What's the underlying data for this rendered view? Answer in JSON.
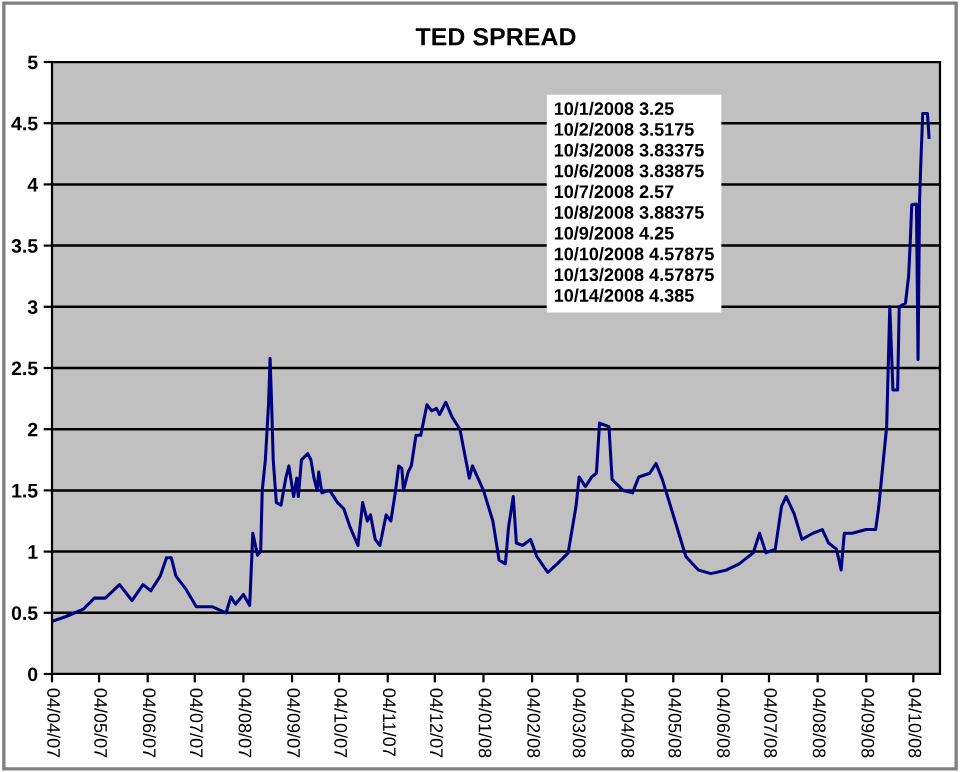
{
  "chart_data": {
    "type": "line",
    "title": "TED SPREAD",
    "x": [
      "2007-04-04",
      "2007-04-13",
      "2007-04-24",
      "2007-05-01",
      "2007-05-08",
      "2007-05-17",
      "2007-05-25",
      "2007-06-01",
      "2007-06-06",
      "2007-06-12",
      "2007-06-16",
      "2007-06-19",
      "2007-06-22",
      "2007-06-28",
      "2007-07-05",
      "2007-07-15",
      "2007-07-24",
      "2007-07-27",
      "2007-07-30",
      "2007-08-04",
      "2007-08-08",
      "2007-08-10",
      "2007-08-13",
      "2007-08-15",
      "2007-08-16",
      "2007-08-18",
      "2007-08-20",
      "2007-08-21",
      "2007-08-22",
      "2007-08-23",
      "2007-08-25",
      "2007-08-28",
      "2007-08-31",
      "2007-09-02",
      "2007-09-05",
      "2007-09-07",
      "2007-09-08",
      "2007-09-10",
      "2007-09-14",
      "2007-09-16",
      "2007-09-18",
      "2007-09-20",
      "2007-09-21",
      "2007-09-23",
      "2007-09-28",
      "2007-10-03",
      "2007-10-07",
      "2007-10-11",
      "2007-10-16",
      "2007-10-19",
      "2007-10-22",
      "2007-10-24",
      "2007-10-27",
      "2007-10-30",
      "2007-11-03",
      "2007-11-06",
      "2007-11-09",
      "2007-11-11",
      "2007-11-13",
      "2007-11-14",
      "2007-11-17",
      "2007-11-19",
      "2007-11-22",
      "2007-11-25",
      "2007-11-29",
      "2007-12-02",
      "2007-12-05",
      "2007-12-07",
      "2007-12-11",
      "2007-12-15",
      "2007-12-20",
      "2007-12-23",
      "2007-12-26",
      "2007-12-28",
      "2008-01-04",
      "2008-01-10",
      "2008-01-14",
      "2008-01-18",
      "2008-01-20",
      "2008-01-23",
      "2008-01-25",
      "2008-01-29",
      "2008-02-03",
      "2008-02-07",
      "2008-02-14",
      "2008-02-20",
      "2008-02-27",
      "2008-03-03",
      "2008-03-05",
      "2008-03-09",
      "2008-03-13",
      "2008-03-16",
      "2008-03-18",
      "2008-03-24",
      "2008-03-26",
      "2008-04-02",
      "2008-04-08",
      "2008-04-12",
      "2008-04-19",
      "2008-04-23",
      "2008-04-27",
      "2008-05-03",
      "2008-05-12",
      "2008-05-20",
      "2008-05-28",
      "2008-06-07",
      "2008-06-15",
      "2008-06-24",
      "2008-06-28",
      "2008-07-02",
      "2008-07-08",
      "2008-07-12",
      "2008-07-15",
      "2008-07-20",
      "2008-07-25",
      "2008-08-01",
      "2008-08-07",
      "2008-08-11",
      "2008-08-16",
      "2008-08-19",
      "2008-08-21",
      "2008-08-26",
      "2008-09-04",
      "2008-09-10",
      "2008-09-12",
      "2008-09-17",
      "2008-09-19",
      "2008-09-21",
      "2008-09-24",
      "2008-09-25",
      "2008-09-29",
      "2008-10-01",
      "2008-10-02",
      "2008-10-03",
      "2008-10-06",
      "2008-10-07",
      "2008-10-08",
      "2008-10-09",
      "2008-10-10",
      "2008-10-13",
      "2008-10-14"
    ],
    "series": [
      {
        "color": "#000080",
        "values": [
          0.43,
          0.47,
          0.53,
          0.62,
          0.62,
          0.73,
          0.6,
          0.73,
          0.68,
          0.8,
          0.95,
          0.95,
          0.8,
          0.7,
          0.55,
          0.55,
          0.5,
          0.63,
          0.57,
          0.65,
          0.56,
          1.15,
          0.97,
          1.0,
          1.5,
          1.75,
          2.2,
          2.58,
          2.2,
          1.75,
          1.4,
          1.38,
          1.6,
          1.7,
          1.45,
          1.6,
          1.45,
          1.75,
          1.8,
          1.75,
          1.6,
          1.5,
          1.65,
          1.48,
          1.5,
          1.4,
          1.35,
          1.2,
          1.05,
          1.4,
          1.25,
          1.3,
          1.1,
          1.05,
          1.3,
          1.25,
          1.5,
          1.7,
          1.68,
          1.5,
          1.65,
          1.7,
          1.95,
          1.95,
          2.2,
          2.15,
          2.17,
          2.12,
          2.22,
          2.1,
          2.0,
          1.8,
          1.6,
          1.7,
          1.5,
          1.25,
          0.93,
          0.9,
          1.2,
          1.45,
          1.07,
          1.05,
          1.1,
          0.96,
          0.83,
          0.9,
          0.99,
          1.37,
          1.61,
          1.53,
          1.61,
          1.64,
          2.05,
          2.02,
          1.59,
          1.5,
          1.48,
          1.61,
          1.64,
          1.72,
          1.59,
          1.34,
          0.96,
          0.85,
          0.82,
          0.85,
          0.9,
          0.99,
          1.15,
          0.99,
          1.02,
          1.37,
          1.45,
          1.31,
          1.1,
          1.15,
          1.18,
          1.07,
          1.02,
          0.85,
          1.15,
          1.15,
          1.18,
          1.18,
          1.37,
          2.02,
          3.0,
          2.32,
          2.32,
          3.0,
          3.03,
          3.25,
          3.5175,
          3.83375,
          3.83875,
          2.57,
          3.88375,
          4.25,
          4.57875,
          4.57875,
          4.385
        ]
      }
    ],
    "xlim": [
      "2007-04-04",
      "2008-10-21"
    ],
    "xticks": [
      {
        "value": "2007-04-04",
        "label": "04/04/07"
      },
      {
        "value": "2007-05-04",
        "label": "04/05/07"
      },
      {
        "value": "2007-06-04",
        "label": "04/06/07"
      },
      {
        "value": "2007-07-04",
        "label": "04/07/07"
      },
      {
        "value": "2007-08-04",
        "label": "04/08/07"
      },
      {
        "value": "2007-09-04",
        "label": "04/09/07"
      },
      {
        "value": "2007-10-04",
        "label": "04/10/07"
      },
      {
        "value": "2007-11-04",
        "label": "04/11/07"
      },
      {
        "value": "2007-12-04",
        "label": "04/12/07"
      },
      {
        "value": "2008-01-04",
        "label": "04/01/08"
      },
      {
        "value": "2008-02-04",
        "label": "04/02/08"
      },
      {
        "value": "2008-03-04",
        "label": "04/03/08"
      },
      {
        "value": "2008-04-04",
        "label": "04/04/08"
      },
      {
        "value": "2008-05-04",
        "label": "04/05/08"
      },
      {
        "value": "2008-06-04",
        "label": "04/06/08"
      },
      {
        "value": "2008-07-04",
        "label": "04/07/08"
      },
      {
        "value": "2008-08-04",
        "label": "04/08/08"
      },
      {
        "value": "2008-09-04",
        "label": "04/09/08"
      },
      {
        "value": "2008-10-04",
        "label": "04/10/08"
      }
    ],
    "ylim": [
      0,
      5
    ],
    "yticks": [
      0,
      0.5,
      1,
      1.5,
      2,
      2.5,
      3,
      3.5,
      4,
      4.5,
      5
    ],
    "grid": "y",
    "legend": false,
    "marker": "none",
    "line_style": "solid",
    "annotations": [
      "10/1/2008 3.25",
      "10/2/2008 3.5175",
      "10/3/2008 3.83375",
      "10/6/2008 3.83875",
      "10/7/2008 2.57",
      "10/8/2008 3.88375",
      "10/9/2008 4.25",
      "10/10/2008 4.57875",
      "10/13/2008 4.57875",
      "10/14/2008 4.385"
    ]
  }
}
